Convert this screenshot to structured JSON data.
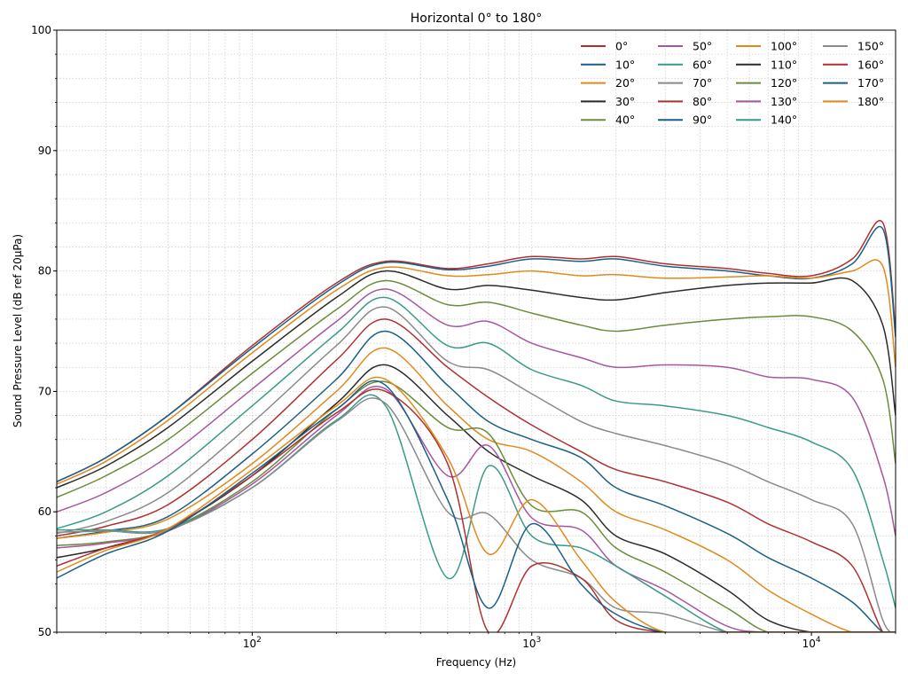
{
  "chart_data": {
    "type": "line",
    "title": "Horizontal 0° to 180°",
    "xlabel": "Frequency (Hz)",
    "ylabel": "Sound Pressure Level (dB ref 20µPa)",
    "xscale": "log",
    "xlim": [
      20,
      20000
    ],
    "ylim": [
      50,
      100
    ],
    "x_ticks": [
      {
        "value": 100,
        "base": "10",
        "exp": "2"
      },
      {
        "value": 1000,
        "base": "10",
        "exp": "3"
      },
      {
        "value": 10000,
        "base": "10",
        "exp": "4"
      }
    ],
    "y_ticks": [
      "50",
      "60",
      "70",
      "80",
      "90",
      "100"
    ],
    "grid": true,
    "legend_position": "top-right",
    "legend_columns": 4,
    "x": [
      20,
      30,
      50,
      100,
      200,
      300,
      500,
      700,
      1000,
      1500,
      2000,
      3000,
      5000,
      7000,
      10000,
      14000,
      18000,
      20000
    ],
    "series": [
      {
        "name": "0°",
        "color": "#b03030",
        "values": [
          62.5,
          64.5,
          68.0,
          73.8,
          79.0,
          80.8,
          80.2,
          80.6,
          81.2,
          81.0,
          81.2,
          80.6,
          80.2,
          79.8,
          79.6,
          81.0,
          84.0,
          75.0
        ]
      },
      {
        "name": "10°",
        "color": "#1a5f85",
        "values": [
          62.5,
          64.5,
          68.0,
          73.6,
          78.8,
          80.7,
          80.1,
          80.4,
          81.0,
          80.8,
          81.0,
          80.4,
          80.0,
          79.6,
          79.4,
          80.6,
          83.5,
          74.5
        ]
      },
      {
        "name": "20°",
        "color": "#e08a1e",
        "values": [
          62.3,
          64.2,
          67.6,
          73.2,
          78.4,
          80.3,
          79.6,
          79.7,
          80.0,
          79.6,
          79.7,
          79.4,
          79.5,
          79.6,
          79.4,
          80.0,
          80.4,
          72.0
        ]
      },
      {
        "name": "30°",
        "color": "#2b2b2b",
        "values": [
          62.0,
          63.8,
          67.0,
          72.5,
          77.8,
          80.0,
          78.5,
          78.8,
          78.4,
          77.8,
          77.6,
          78.2,
          78.8,
          79.0,
          79.0,
          79.2,
          75.5,
          68.0
        ]
      },
      {
        "name": "40°",
        "color": "#6b8c3a",
        "values": [
          61.2,
          63.0,
          66.0,
          71.5,
          76.8,
          79.2,
          77.2,
          77.4,
          76.5,
          75.5,
          75.0,
          75.5,
          76.0,
          76.2,
          76.2,
          75.0,
          71.0,
          64.0
        ]
      },
      {
        "name": "50°",
        "color": "#a855a0",
        "values": [
          60.0,
          61.6,
          64.6,
          70.2,
          75.8,
          78.5,
          75.5,
          75.8,
          74.0,
          72.8,
          72.0,
          72.2,
          72.0,
          71.2,
          71.0,
          69.5,
          63.0,
          58.0
        ]
      },
      {
        "name": "60°",
        "color": "#3a9a88",
        "values": [
          58.6,
          60.0,
          63.0,
          68.8,
          74.8,
          77.8,
          73.8,
          74.0,
          71.8,
          70.5,
          69.2,
          68.8,
          68.0,
          67.0,
          65.8,
          63.5,
          56.0,
          52.0
        ]
      },
      {
        "name": "70°",
        "color": "#8a8a8a",
        "values": [
          58.2,
          59.2,
          61.6,
          67.4,
          73.8,
          77.0,
          72.5,
          71.8,
          69.8,
          67.5,
          66.5,
          65.5,
          64.0,
          62.5,
          61.0,
          59.0,
          51.0,
          50.0
        ]
      },
      {
        "name": "80°",
        "color": "#b03030",
        "values": [
          58.0,
          58.8,
          60.6,
          66.0,
          72.6,
          76.0,
          72.0,
          69.5,
          67.2,
          65.0,
          63.5,
          62.5,
          60.8,
          59.0,
          57.5,
          55.5,
          50.0,
          50.0
        ]
      },
      {
        "name": "90°",
        "color": "#1a5f85",
        "values": [
          57.8,
          58.4,
          59.6,
          64.8,
          71.0,
          75.0,
          70.5,
          67.5,
          66.0,
          64.5,
          62.0,
          60.5,
          58.2,
          56.2,
          54.5,
          52.5,
          50.0,
          50.0
        ]
      },
      {
        "name": "100°",
        "color": "#e08a1e",
        "values": [
          57.8,
          58.3,
          59.4,
          64.0,
          70.0,
          73.6,
          68.8,
          66.0,
          65.0,
          62.5,
          60.0,
          58.5,
          56.0,
          53.5,
          51.5,
          50.0,
          50.0,
          50.0
        ]
      },
      {
        "name": "110°",
        "color": "#2b2b2b",
        "values": [
          56.2,
          57.0,
          58.6,
          63.0,
          69.0,
          72.2,
          68.0,
          65.0,
          63.0,
          61.0,
          58.0,
          56.5,
          53.5,
          51.0,
          50.0,
          50.0,
          50.0,
          50.0
        ]
      },
      {
        "name": "120°",
        "color": "#6b8c3a",
        "values": [
          57.2,
          57.5,
          58.5,
          62.5,
          68.5,
          70.8,
          67.0,
          66.5,
          60.5,
          60.0,
          57.0,
          55.0,
          52.0,
          50.0,
          50.0,
          50.0,
          50.0,
          50.0
        ]
      },
      {
        "name": "130°",
        "color": "#a855a0",
        "values": [
          57.0,
          57.4,
          58.4,
          62.3,
          68.0,
          70.2,
          63.0,
          65.5,
          59.5,
          58.5,
          55.5,
          53.5,
          50.5,
          50.0,
          50.0,
          50.0,
          50.0,
          50.0
        ]
      },
      {
        "name": "140°",
        "color": "#3a9a88",
        "values": [
          58.5,
          58.5,
          58.6,
          62.0,
          67.6,
          68.8,
          54.5,
          63.8,
          58.0,
          57.0,
          55.5,
          53.0,
          50.0,
          50.0,
          50.0,
          50.0,
          50.0,
          50.0
        ]
      },
      {
        "name": "150°",
        "color": "#8a8a8a",
        "values": [
          58.3,
          58.4,
          58.5,
          62.0,
          67.5,
          69.0,
          60.0,
          59.8,
          56.0,
          54.5,
          52.0,
          51.5,
          50.0,
          50.0,
          50.0,
          50.0,
          50.0,
          50.0
        ]
      },
      {
        "name": "160°",
        "color": "#b03030",
        "values": [
          55.5,
          57.0,
          58.6,
          63.0,
          68.2,
          70.0,
          64.0,
          50.0,
          55.5,
          54.5,
          51.0,
          50.0,
          50.0,
          50.0,
          50.0,
          50.0,
          50.0,
          50.0
        ]
      },
      {
        "name": "170°",
        "color": "#1a5f85",
        "values": [
          54.5,
          56.5,
          58.4,
          63.2,
          68.5,
          70.5,
          61.0,
          52.0,
          59.0,
          54.0,
          51.5,
          50.0,
          50.0,
          50.0,
          50.0,
          50.0,
          50.0,
          50.0
        ]
      },
      {
        "name": "180°",
        "color": "#e08a1e",
        "values": [
          55.0,
          56.8,
          58.6,
          63.5,
          68.8,
          71.0,
          64.5,
          56.5,
          61.0,
          56.0,
          52.5,
          50.0,
          50.0,
          50.0,
          50.0,
          50.0,
          50.0,
          50.0
        ]
      }
    ]
  }
}
